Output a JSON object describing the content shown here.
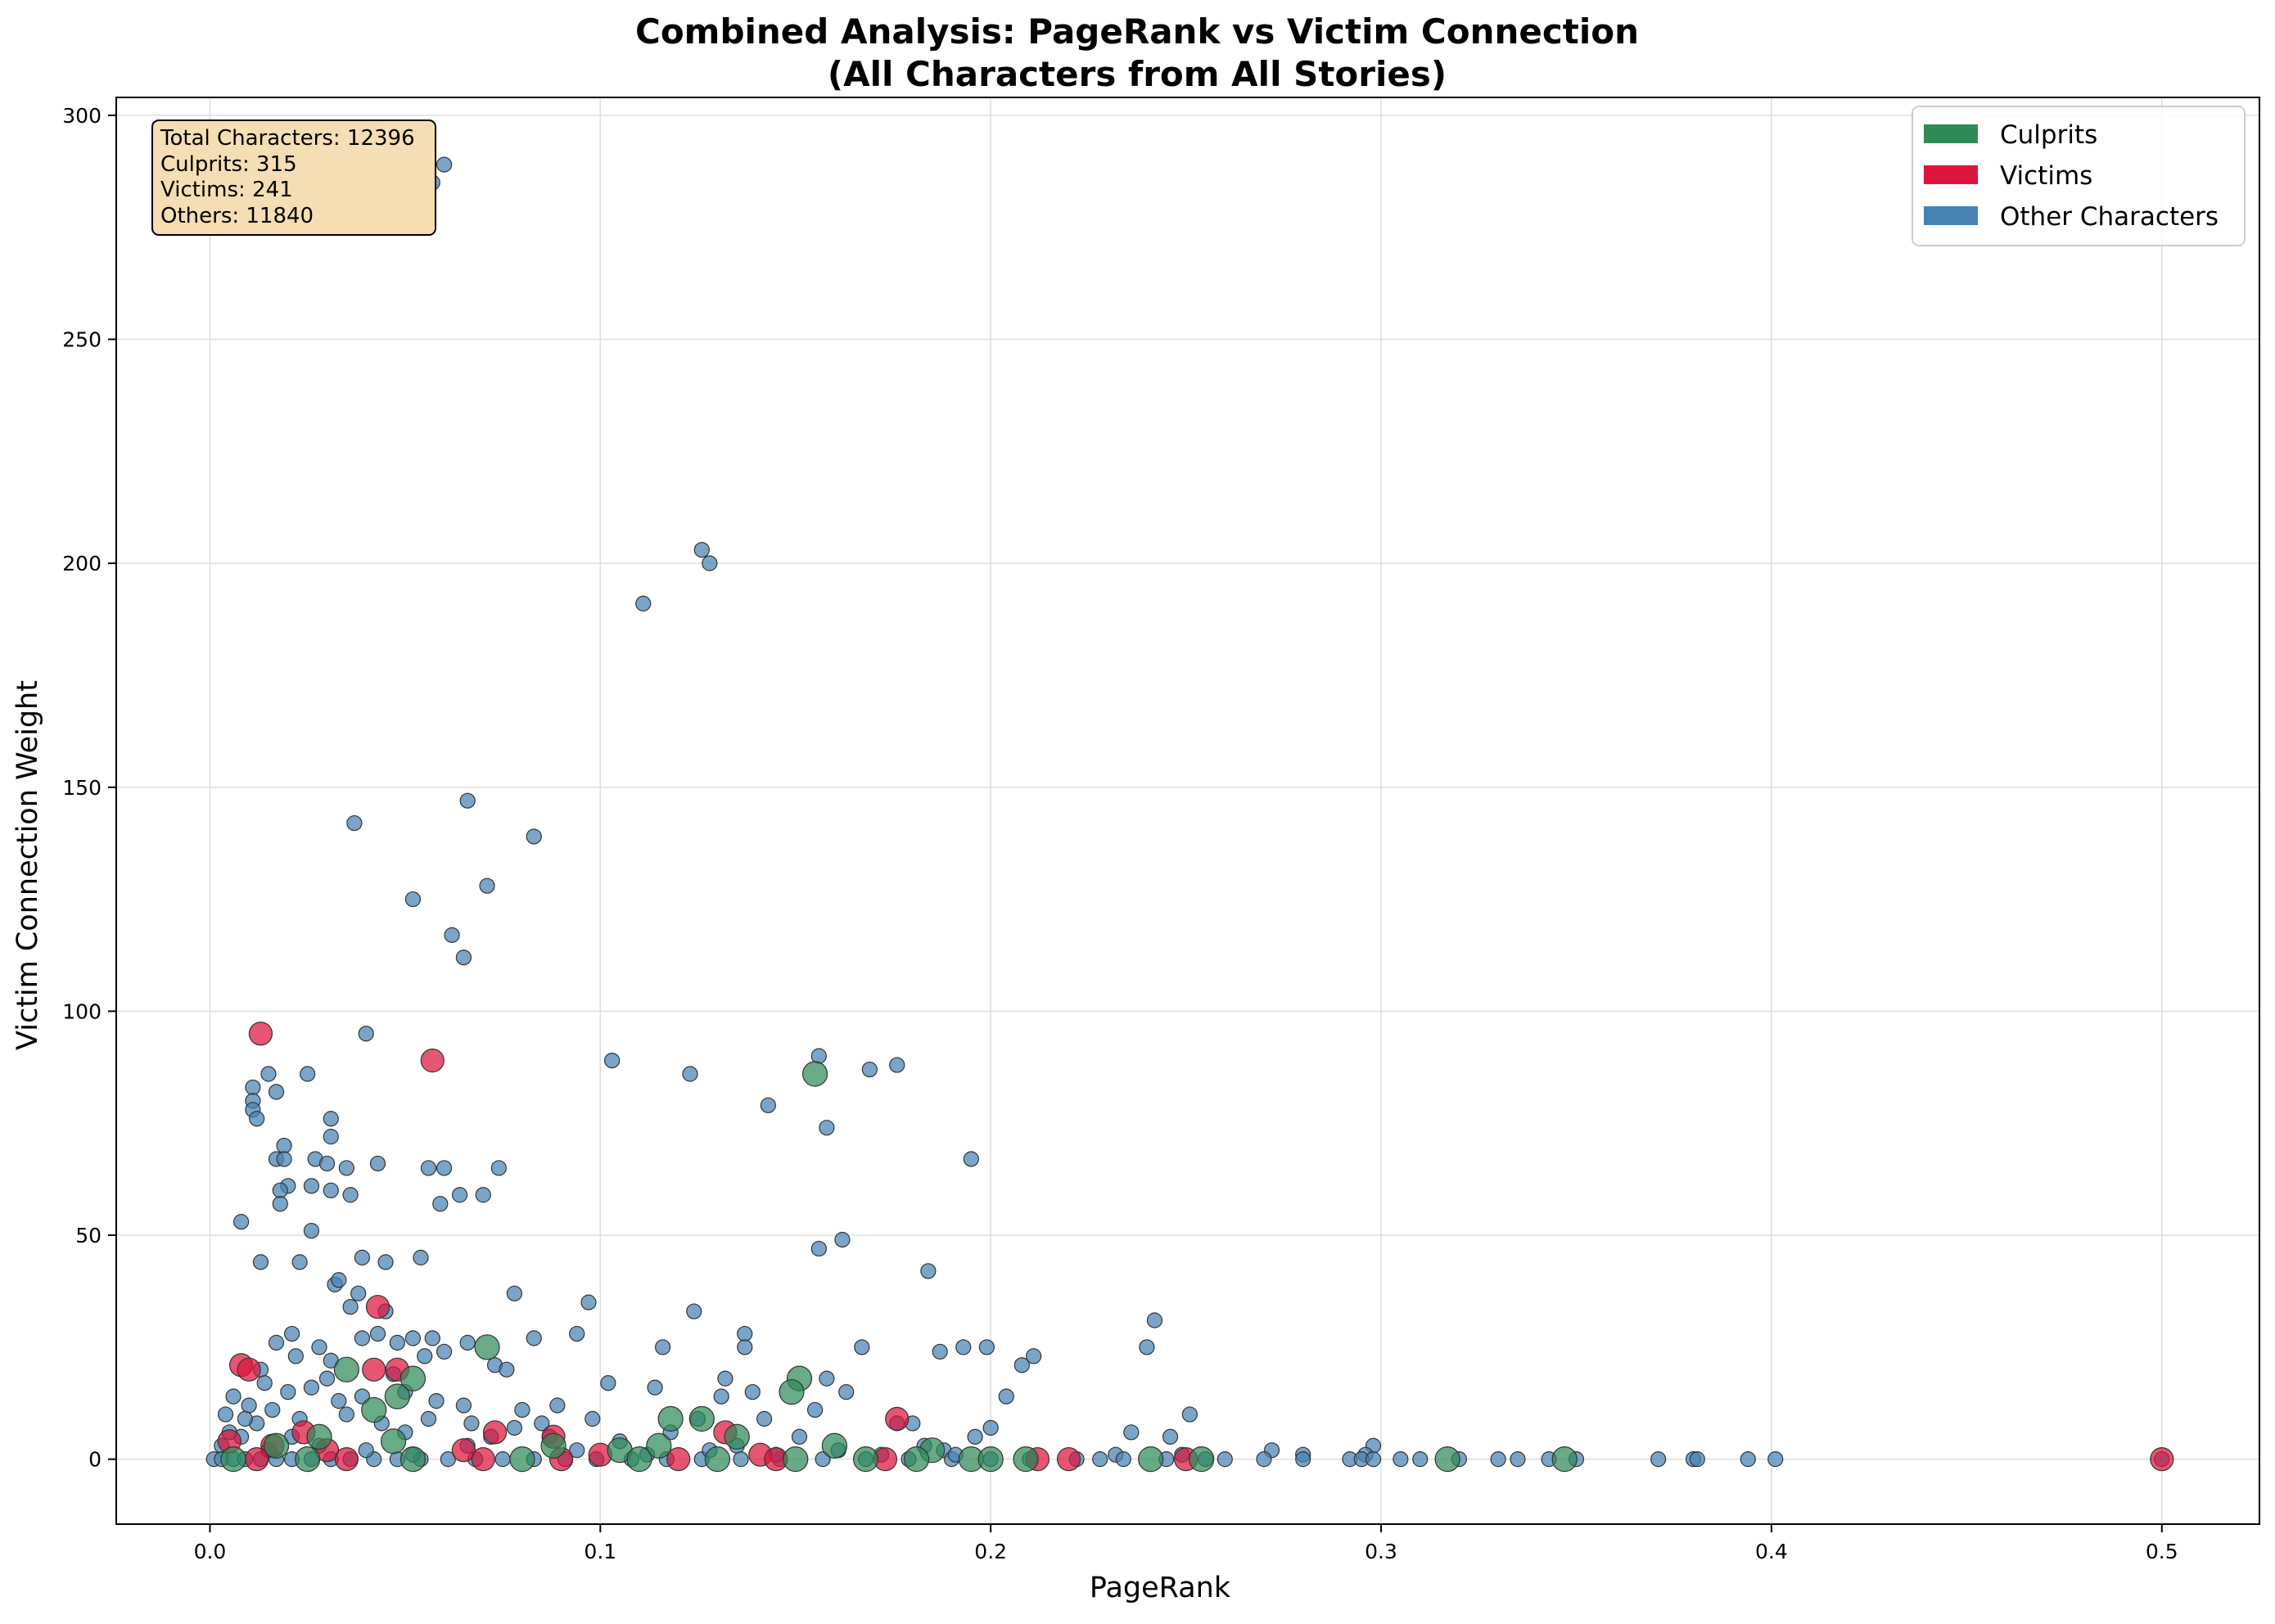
{
  "chart_data": {
    "type": "scatter",
    "title": "Combined Analysis: PageRank vs Victim Connection",
    "subtitle": "(All Characters from All Stories)",
    "xlabel": "PageRank",
    "ylabel": "Victim Connection Weight",
    "xlim": [
      -0.024,
      0.525
    ],
    "ylim": [
      -14.5,
      304
    ],
    "x_ticks": [
      "0.0",
      "0.1",
      "0.2",
      "0.3",
      "0.4",
      "0.5"
    ],
    "x_tick_values": [
      0,
      0.1,
      0.2,
      0.3,
      0.4,
      0.5
    ],
    "y_ticks": [
      "0",
      "50",
      "100",
      "150",
      "200",
      "250",
      "300"
    ],
    "y_tick_values": [
      0,
      50,
      100,
      150,
      200,
      250,
      300
    ],
    "grid": true,
    "legend_position": "top-right",
    "legend": [
      {
        "label": "Culprits",
        "color": "#2e8b57"
      },
      {
        "label": "Victims",
        "color": "#dc143c"
      },
      {
        "label": "Other Characters",
        "color": "#4682b4"
      }
    ],
    "stats_box": [
      "Total Characters: 12396",
      "Culprits: 315",
      "Victims: 241",
      "Others: 11840"
    ],
    "series": [
      {
        "name": "Other Characters",
        "color": "#4682b4",
        "points": [
          [
            0.057,
            285
          ],
          [
            0.06,
            289
          ],
          [
            0.126,
            203
          ],
          [
            0.128,
            200
          ],
          [
            0.111,
            191
          ],
          [
            0.066,
            147
          ],
          [
            0.037,
            142
          ],
          [
            0.083,
            139
          ],
          [
            0.071,
            128
          ],
          [
            0.052,
            125
          ],
          [
            0.062,
            117
          ],
          [
            0.065,
            112
          ],
          [
            0.04,
            95
          ],
          [
            0.156,
            90
          ],
          [
            0.103,
            89
          ],
          [
            0.169,
            87
          ],
          [
            0.176,
            88
          ],
          [
            0.123,
            86
          ],
          [
            0.025,
            86
          ],
          [
            0.015,
            86
          ],
          [
            0.011,
            83
          ],
          [
            0.017,
            82
          ],
          [
            0.011,
            80
          ],
          [
            0.011,
            78
          ],
          [
            0.012,
            76
          ],
          [
            0.031,
            76
          ],
          [
            0.143,
            79
          ],
          [
            0.158,
            74
          ],
          [
            0.031,
            72
          ],
          [
            0.019,
            70
          ],
          [
            0.027,
            67
          ],
          [
            0.017,
            67
          ],
          [
            0.019,
            67
          ],
          [
            0.195,
            67
          ],
          [
            0.03,
            66
          ],
          [
            0.043,
            66
          ],
          [
            0.035,
            65
          ],
          [
            0.056,
            65
          ],
          [
            0.06,
            65
          ],
          [
            0.074,
            65
          ],
          [
            0.02,
            61
          ],
          [
            0.026,
            61
          ],
          [
            0.018,
            60
          ],
          [
            0.031,
            60
          ],
          [
            0.036,
            59
          ],
          [
            0.064,
            59
          ],
          [
            0.07,
            59
          ],
          [
            0.018,
            57
          ],
          [
            0.059,
            57
          ],
          [
            0.008,
            53
          ],
          [
            0.026,
            51
          ],
          [
            0.162,
            49
          ],
          [
            0.156,
            47
          ],
          [
            0.013,
            44
          ],
          [
            0.023,
            44
          ],
          [
            0.039,
            45
          ],
          [
            0.045,
            44
          ],
          [
            0.054,
            45
          ],
          [
            0.184,
            42
          ],
          [
            0.032,
            39
          ],
          [
            0.033,
            40
          ],
          [
            0.038,
            37
          ],
          [
            0.078,
            37
          ],
          [
            0.097,
            35
          ],
          [
            0.036,
            34
          ],
          [
            0.045,
            33
          ],
          [
            0.124,
            33
          ],
          [
            0.242,
            31
          ],
          [
            0.137,
            28
          ],
          [
            0.094,
            28
          ],
          [
            0.043,
            28
          ],
          [
            0.021,
            28
          ],
          [
            0.052,
            27
          ],
          [
            0.057,
            27
          ],
          [
            0.083,
            27
          ],
          [
            0.039,
            27
          ],
          [
            0.116,
            25
          ],
          [
            0.137,
            25
          ],
          [
            0.167,
            25
          ],
          [
            0.187,
            24
          ],
          [
            0.193,
            25
          ],
          [
            0.199,
            25
          ],
          [
            0.24,
            25
          ],
          [
            0.017,
            26
          ],
          [
            0.028,
            25
          ],
          [
            0.048,
            26
          ],
          [
            0.066,
            26
          ],
          [
            0.211,
            23
          ],
          [
            0.208,
            21
          ],
          [
            0.073,
            21
          ],
          [
            0.076,
            20
          ],
          [
            0.013,
            20
          ],
          [
            0.022,
            23
          ],
          [
            0.031,
            22
          ],
          [
            0.055,
            23
          ],
          [
            0.06,
            24
          ],
          [
            0.158,
            18
          ],
          [
            0.132,
            18
          ],
          [
            0.03,
            18
          ],
          [
            0.047,
            19
          ],
          [
            0.102,
            17
          ],
          [
            0.114,
            16
          ],
          [
            0.139,
            15
          ],
          [
            0.163,
            15
          ],
          [
            0.014,
            17
          ],
          [
            0.026,
            16
          ],
          [
            0.004,
            10
          ],
          [
            0.006,
            14
          ],
          [
            0.01,
            12
          ],
          [
            0.02,
            15
          ],
          [
            0.033,
            13
          ],
          [
            0.039,
            14
          ],
          [
            0.05,
            15
          ],
          [
            0.058,
            13
          ],
          [
            0.065,
            12
          ],
          [
            0.08,
            11
          ],
          [
            0.089,
            12
          ],
          [
            0.131,
            14
          ],
          [
            0.204,
            14
          ],
          [
            0.251,
            10
          ],
          [
            0.155,
            11
          ],
          [
            0.142,
            9
          ],
          [
            0.125,
            9
          ],
          [
            0.098,
            9
          ],
          [
            0.085,
            8
          ],
          [
            0.067,
            8
          ],
          [
            0.044,
            8
          ],
          [
            0.012,
            8
          ],
          [
            0.176,
            8
          ],
          [
            0.18,
            8
          ],
          [
            0.236,
            6
          ],
          [
            0.196,
            5
          ],
          [
            0.2,
            7
          ],
          [
            0.246,
            5
          ],
          [
            0.151,
            5
          ],
          [
            0.118,
            6
          ],
          [
            0.087,
            5
          ],
          [
            0.072,
            5
          ],
          [
            0.05,
            6
          ],
          [
            0.021,
            5
          ],
          [
            0.008,
            5
          ],
          [
            0.003,
            3
          ],
          [
            0.005,
            6
          ],
          [
            0.009,
            9
          ],
          [
            0.016,
            11
          ],
          [
            0.023,
            9
          ],
          [
            0.035,
            10
          ],
          [
            0.056,
            9
          ],
          [
            0.078,
            7
          ],
          [
            0.105,
            4
          ],
          [
            0.135,
            3
          ],
          [
            0.161,
            2
          ],
          [
            0.183,
            3
          ],
          [
            0.188,
            2
          ],
          [
            0.272,
            2
          ],
          [
            0.298,
            3
          ],
          [
            0.232,
            1
          ],
          [
            0.249,
            1
          ],
          [
            0.28,
            1
          ],
          [
            0.296,
            1
          ],
          [
            0.001,
            0
          ],
          [
            0.003,
            0
          ],
          [
            0.006,
            0
          ],
          [
            0.009,
            0
          ],
          [
            0.013,
            0
          ],
          [
            0.017,
            0
          ],
          [
            0.021,
            0
          ],
          [
            0.026,
            0
          ],
          [
            0.031,
            0
          ],
          [
            0.036,
            0
          ],
          [
            0.042,
            0
          ],
          [
            0.048,
            0
          ],
          [
            0.054,
            0
          ],
          [
            0.061,
            0
          ],
          [
            0.068,
            0
          ],
          [
            0.075,
            0
          ],
          [
            0.083,
            0
          ],
          [
            0.091,
            0
          ],
          [
            0.099,
            0
          ],
          [
            0.108,
            0
          ],
          [
            0.117,
            0
          ],
          [
            0.126,
            0
          ],
          [
            0.136,
            0
          ],
          [
            0.146,
            0
          ],
          [
            0.157,
            0
          ],
          [
            0.168,
            0
          ],
          [
            0.179,
            0
          ],
          [
            0.19,
            0
          ],
          [
            0.2,
            0
          ],
          [
            0.21,
            0
          ],
          [
            0.222,
            0
          ],
          [
            0.228,
            0
          ],
          [
            0.234,
            0
          ],
          [
            0.245,
            0
          ],
          [
            0.255,
            0
          ],
          [
            0.26,
            0
          ],
          [
            0.27,
            0
          ],
          [
            0.28,
            0
          ],
          [
            0.292,
            0
          ],
          [
            0.295,
            0
          ],
          [
            0.298,
            0
          ],
          [
            0.305,
            0
          ],
          [
            0.31,
            0
          ],
          [
            0.32,
            0
          ],
          [
            0.33,
            0
          ],
          [
            0.335,
            0
          ],
          [
            0.343,
            0
          ],
          [
            0.35,
            0
          ],
          [
            0.371,
            0
          ],
          [
            0.38,
            0
          ],
          [
            0.381,
            0
          ],
          [
            0.394,
            0
          ],
          [
            0.401,
            0
          ],
          [
            0.5,
            0
          ],
          [
            0.015,
            2
          ],
          [
            0.028,
            3
          ],
          [
            0.04,
            2
          ],
          [
            0.052,
            1
          ],
          [
            0.066,
            3
          ],
          [
            0.094,
            2
          ],
          [
            0.112,
            1
          ],
          [
            0.128,
            2
          ],
          [
            0.145,
            1
          ],
          [
            0.172,
            1
          ],
          [
            0.191,
            1
          ]
        ]
      },
      {
        "name": "Victims",
        "color": "#dc143c",
        "points": [
          [
            0.013,
            95
          ],
          [
            0.057,
            89
          ],
          [
            0.043,
            34
          ],
          [
            0.008,
            21
          ],
          [
            0.01,
            20
          ],
          [
            0.042,
            20
          ],
          [
            0.048,
            20
          ],
          [
            0.176,
            9
          ],
          [
            0.073,
            6
          ],
          [
            0.132,
            6
          ],
          [
            0.088,
            5
          ],
          [
            0.024,
            6
          ],
          [
            0.005,
            4
          ],
          [
            0.016,
            3
          ],
          [
            0.03,
            2
          ],
          [
            0.065,
            2
          ],
          [
            0.1,
            1
          ],
          [
            0.141,
            1
          ],
          [
            0.212,
            0
          ],
          [
            0.22,
            0
          ],
          [
            0.25,
            0
          ],
          [
            0.5,
            0
          ],
          [
            0.173,
            0
          ],
          [
            0.145,
            0
          ],
          [
            0.12,
            0
          ],
          [
            0.09,
            0
          ],
          [
            0.07,
            0
          ],
          [
            0.035,
            0
          ],
          [
            0.012,
            0
          ]
        ]
      },
      {
        "name": "Culprits",
        "color": "#2e8b57",
        "points": [
          [
            0.155,
            86
          ],
          [
            0.071,
            25
          ],
          [
            0.151,
            18
          ],
          [
            0.149,
            15
          ],
          [
            0.052,
            18
          ],
          [
            0.035,
            20
          ],
          [
            0.042,
            11
          ],
          [
            0.048,
            14
          ],
          [
            0.126,
            9
          ],
          [
            0.118,
            9
          ],
          [
            0.135,
            5
          ],
          [
            0.028,
            5
          ],
          [
            0.047,
            4
          ],
          [
            0.017,
            3
          ],
          [
            0.088,
            3
          ],
          [
            0.105,
            2
          ],
          [
            0.16,
            3
          ],
          [
            0.185,
            2
          ],
          [
            0.115,
            3
          ],
          [
            0.195,
            0
          ],
          [
            0.2,
            0
          ],
          [
            0.209,
            0
          ],
          [
            0.241,
            0
          ],
          [
            0.254,
            0
          ],
          [
            0.317,
            0
          ],
          [
            0.347,
            0
          ],
          [
            0.006,
            0
          ],
          [
            0.025,
            0
          ],
          [
            0.052,
            0
          ],
          [
            0.08,
            0
          ],
          [
            0.11,
            0
          ],
          [
            0.13,
            0
          ],
          [
            0.15,
            0
          ],
          [
            0.168,
            0
          ],
          [
            0.181,
            0
          ]
        ]
      }
    ]
  }
}
